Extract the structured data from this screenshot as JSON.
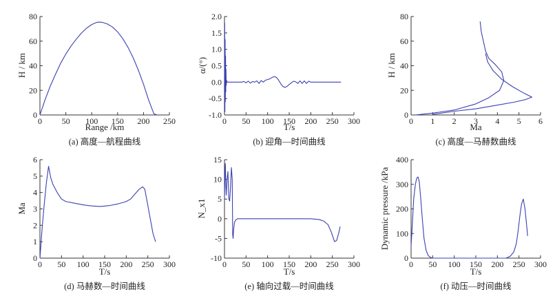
{
  "chart_data": [
    {
      "type": "line",
      "xlabel": "Range /km",
      "ylabel": "H / km",
      "caption": "(a)  高度—航程曲线",
      "xlim": [
        0,
        250
      ],
      "ylim": [
        0,
        80
      ],
      "xticks": [
        0,
        50,
        100,
        150,
        200,
        250
      ],
      "yticks": [
        0,
        20,
        40,
        60,
        80
      ],
      "series": [
        {
          "x": [
            0,
            10,
            20,
            30,
            40,
            50,
            60,
            70,
            80,
            90,
            100,
            110,
            115,
            120,
            130,
            140,
            150,
            160,
            170,
            180,
            190,
            200,
            210,
            220,
            226
          ],
          "y": [
            0,
            12.5,
            23.5,
            33,
            42,
            49.5,
            56,
            61.5,
            66.5,
            70.5,
            73.5,
            75.3,
            75.5,
            75.3,
            74,
            71.5,
            67.5,
            62,
            55,
            46.5,
            36.5,
            25,
            12,
            1,
            0
          ]
        }
      ]
    },
    {
      "type": "line",
      "xlabel": "T/s",
      "ylabel": "α/(°)",
      "caption": "(b)  迎角—时间曲线",
      "xlim": [
        0,
        300
      ],
      "ylim": [
        -1.0,
        2.0
      ],
      "xticks": [
        0,
        50,
        100,
        150,
        200,
        250,
        300
      ],
      "yticks": [
        -1.0,
        -0.5,
        0,
        0.5,
        1.0,
        1.5,
        2.0
      ],
      "series": [
        {
          "x": [
            0,
            0.5,
            1,
            1.5,
            2,
            2.5,
            3,
            3.5,
            4,
            5,
            6,
            8,
            10,
            15,
            20,
            30,
            40,
            45,
            50,
            55,
            60,
            65,
            70,
            75,
            80,
            85,
            90,
            95,
            100,
            105,
            110,
            115,
            120,
            125,
            130,
            135,
            140,
            145,
            150,
            155,
            160,
            165,
            170,
            175,
            180,
            185,
            190,
            195,
            200,
            210,
            220,
            230,
            240,
            250,
            260,
            270
          ],
          "y": [
            0,
            1.8,
            -0.9,
            1.3,
            -0.6,
            0.8,
            -0.3,
            0.4,
            -0.1,
            0.05,
            0,
            0,
            0,
            0,
            0,
            0,
            0,
            0.02,
            -0.02,
            0.03,
            -0.03,
            0.02,
            0,
            0.04,
            -0.04,
            0.05,
            0,
            0.06,
            0.08,
            0.1,
            0.14,
            0.17,
            0.15,
            0.07,
            -0.04,
            -0.13,
            -0.16,
            -0.13,
            -0.07,
            -0.02,
            0.03,
            0.01,
            -0.04,
            0.04,
            -0.04,
            0.04,
            -0.04,
            0.03,
            0,
            0,
            0,
            0,
            0,
            0,
            0,
            0
          ]
        }
      ]
    },
    {
      "type": "line",
      "xlabel": "Ma",
      "ylabel": "H / km",
      "caption": "(c)  高度—马赫数曲线",
      "xlim": [
        0,
        6
      ],
      "ylim": [
        0,
        80
      ],
      "xticks": [
        0,
        1,
        2,
        3,
        4,
        5,
        6
      ],
      "yticks": [
        0,
        20,
        40,
        60,
        80
      ],
      "series": [
        {
          "x": [
            0.2,
            1.0,
            2.0,
            3.0,
            3.6,
            4.1,
            4.3,
            4.2,
            3.9,
            3.6,
            3.45,
            3.35,
            3.25,
            3.2
          ],
          "y": [
            0,
            1.5,
            4,
            9,
            14,
            20,
            28,
            35,
            41,
            46,
            52,
            60,
            68,
            76
          ]
        },
        {
          "x": [
            1.0,
            2.0,
            3.0,
            4.0,
            4.8,
            5.3,
            5.6,
            5.2,
            4.7,
            4.2,
            3.8,
            3.55,
            3.45
          ],
          "y": [
            0.5,
            3,
            5,
            8,
            10.5,
            12.5,
            14.5,
            18,
            23,
            29,
            36,
            43,
            50
          ]
        }
      ]
    },
    {
      "type": "line",
      "xlabel": "T/s",
      "ylabel": "Ma",
      "caption": "(d)  马赫数—时间曲线",
      "xlim": [
        0,
        300
      ],
      "ylim": [
        0,
        6
      ],
      "xticks": [
        0,
        50,
        100,
        150,
        200,
        250,
        300
      ],
      "yticks": [
        0,
        1,
        2,
        3,
        4,
        5,
        6
      ],
      "series": [
        {
          "x": [
            0,
            5,
            10,
            15,
            20,
            25,
            30,
            40,
            50,
            60,
            80,
            100,
            120,
            140,
            160,
            180,
            200,
            210,
            220,
            230,
            238,
            243,
            248,
            255,
            262,
            268
          ],
          "y": [
            0,
            1.8,
            3.3,
            4.6,
            5.6,
            4.9,
            4.5,
            4.0,
            3.6,
            3.45,
            3.35,
            3.25,
            3.18,
            3.15,
            3.2,
            3.3,
            3.45,
            3.6,
            3.9,
            4.2,
            4.35,
            4.2,
            3.5,
            2.5,
            1.5,
            1.0
          ]
        }
      ]
    },
    {
      "type": "line",
      "xlabel": "T/s",
      "ylabel": "N_x1",
      "caption": "(e)  轴向过载—时间曲线",
      "xlim": [
        0,
        300
      ],
      "ylim": [
        -10,
        15
      ],
      "xticks": [
        0,
        50,
        100,
        150,
        200,
        250,
        300
      ],
      "yticks": [
        -10,
        -5,
        0,
        5,
        10,
        15
      ],
      "series": [
        {
          "x": [
            0,
            1,
            2,
            3,
            4,
            6,
            8,
            10,
            12,
            14,
            16,
            18,
            19,
            20,
            21,
            23,
            26,
            30,
            40,
            60,
            100,
            150,
            200,
            220,
            230,
            240,
            248,
            255,
            260,
            265,
            268
          ],
          "y": [
            5,
            11,
            14,
            9,
            6,
            10,
            12,
            5,
            4.5,
            8,
            13,
            10,
            -4,
            -5,
            -3,
            -1,
            -0.3,
            0,
            0,
            0,
            0,
            0,
            0,
            -0.2,
            -0.6,
            -1.5,
            -3.5,
            -5.8,
            -5.5,
            -3.5,
            -2
          ]
        }
      ]
    },
    {
      "type": "line",
      "xlabel": "T/s",
      "ylabel": "Dynamic pressure /kPa",
      "caption": "(f)  动压—时间曲线",
      "xlim": [
        0,
        300
      ],
      "ylim": [
        0,
        400
      ],
      "xticks": [
        0,
        50,
        100,
        150,
        200,
        250,
        300
      ],
      "yticks": [
        0,
        100,
        200,
        300,
        400
      ],
      "series": [
        {
          "x": [
            0,
            3,
            6,
            10,
            13,
            16,
            19,
            22,
            26,
            30,
            35,
            40,
            45,
            50,
            60,
            100,
            150,
            200,
            220,
            230,
            238,
            244,
            248,
            252,
            256,
            260,
            264,
            268,
            270
          ],
          "y": [
            50,
            140,
            240,
            300,
            325,
            330,
            310,
            250,
            160,
            80,
            30,
            10,
            3,
            0,
            0,
            0,
            0,
            0,
            0,
            8,
            25,
            60,
            110,
            170,
            220,
            240,
            200,
            130,
            90
          ]
        }
      ]
    }
  ]
}
